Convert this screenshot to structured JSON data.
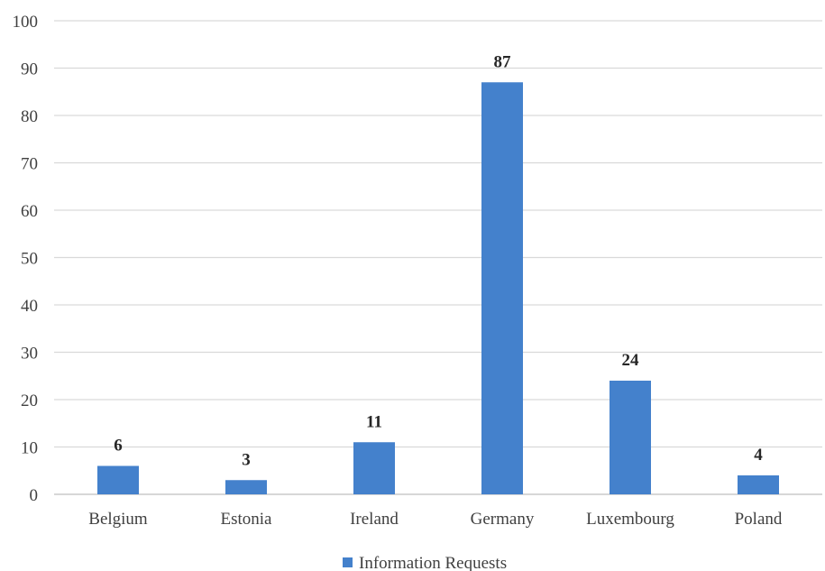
{
  "chart_data": {
    "type": "bar",
    "title": "",
    "xlabel": "",
    "ylabel": "",
    "categories": [
      "Belgium",
      "Estonia",
      "Ireland",
      "Germany",
      "Luxembourg",
      "Poland"
    ],
    "series": [
      {
        "name": "Information Requests",
        "values": [
          6,
          3,
          11,
          87,
          24,
          4
        ],
        "color": "#4481cc"
      }
    ],
    "ylim": [
      0,
      100
    ],
    "yticks": [
      0,
      10,
      20,
      30,
      40,
      50,
      60,
      70,
      80,
      90,
      100
    ],
    "grid": true,
    "legend_position": "bottom",
    "data_labels": true
  }
}
